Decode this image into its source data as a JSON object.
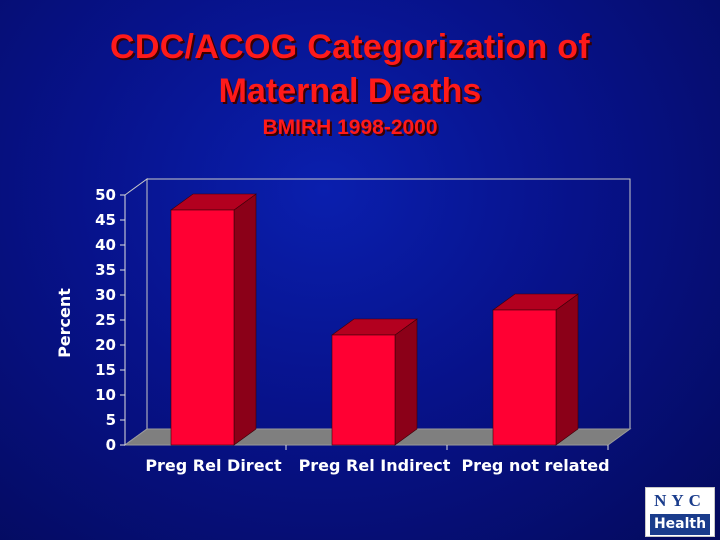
{
  "title_line1": "CDC/ACOG Categorization of",
  "title_line2": "Maternal Deaths",
  "subtitle": "BMIRH 1998-2000",
  "chart_data": {
    "type": "bar",
    "title": "CDC/ACOG Categorization of Maternal Deaths",
    "subtitle": "BMIRH 1998-2000",
    "categories": [
      "Preg Rel Direct",
      "Preg Rel Indirect",
      "Preg not related"
    ],
    "values": [
      47,
      22,
      27
    ],
    "ylabel": "Percent",
    "xlabel": "",
    "ylim": [
      0,
      50
    ],
    "yticks": [
      0,
      5,
      10,
      15,
      20,
      25,
      30,
      35,
      40,
      45,
      50
    ],
    "grid": false,
    "bar_color": "#ff0033",
    "bar_side_color": "#8b0018",
    "bar_top_color": "#b3001f"
  },
  "logo": {
    "top": "NYC",
    "bottom": "Health"
  }
}
